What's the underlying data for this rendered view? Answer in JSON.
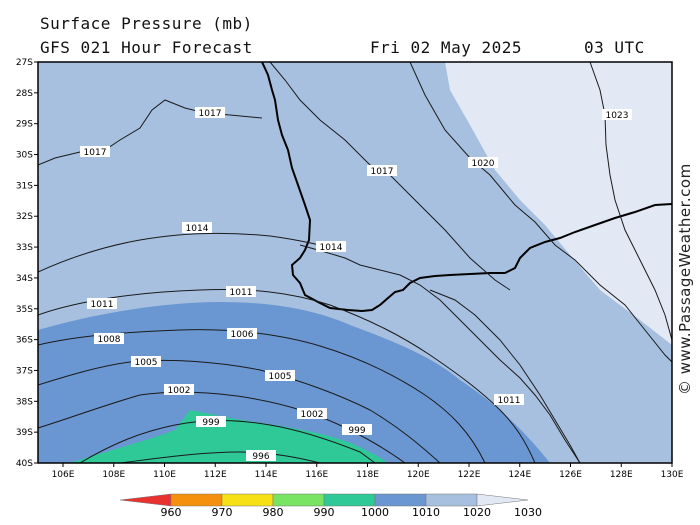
{
  "header": {
    "title": "Surface Pressure (mb)",
    "forecast": "GFS 021 Hour Forecast",
    "date": "Fri 02 May 2025",
    "time": "03 UTC"
  },
  "watermark": "© www.PassageWeather.com",
  "map": {
    "lat_labels": [
      "27S",
      "28S",
      "29S",
      "30S",
      "31S",
      "32S",
      "33S",
      "34S",
      "35S",
      "36S",
      "37S",
      "38S",
      "39S",
      "40S"
    ],
    "lon_labels": [
      "106E",
      "108E",
      "110E",
      "112E",
      "114E",
      "116E",
      "118E",
      "120E",
      "122E",
      "124E",
      "126E",
      "128E",
      "130E"
    ],
    "isobar_labels": [
      "1017",
      "1017",
      "1017",
      "1020",
      "1023",
      "1014",
      "1014",
      "1011",
      "1011",
      "1011",
      "1008",
      "1006",
      "1005",
      "1005",
      "1002",
      "1002",
      "999",
      "999",
      "996"
    ]
  },
  "legend": {
    "values": [
      "960",
      "970",
      "980",
      "990",
      "1000",
      "1010",
      "1020",
      "1030"
    ],
    "colors": [
      "#e8322f",
      "#f5900f",
      "#f7e114",
      "#79e463",
      "#2ec996",
      "#6a97d2",
      "#a7c0e0",
      "#e2e9f5"
    ]
  },
  "colors": {
    "band_1020": "#e2e9f5",
    "band_1010": "#a7c0e0",
    "band_1000": "#6a97d2",
    "band_990": "#2ec996"
  }
}
